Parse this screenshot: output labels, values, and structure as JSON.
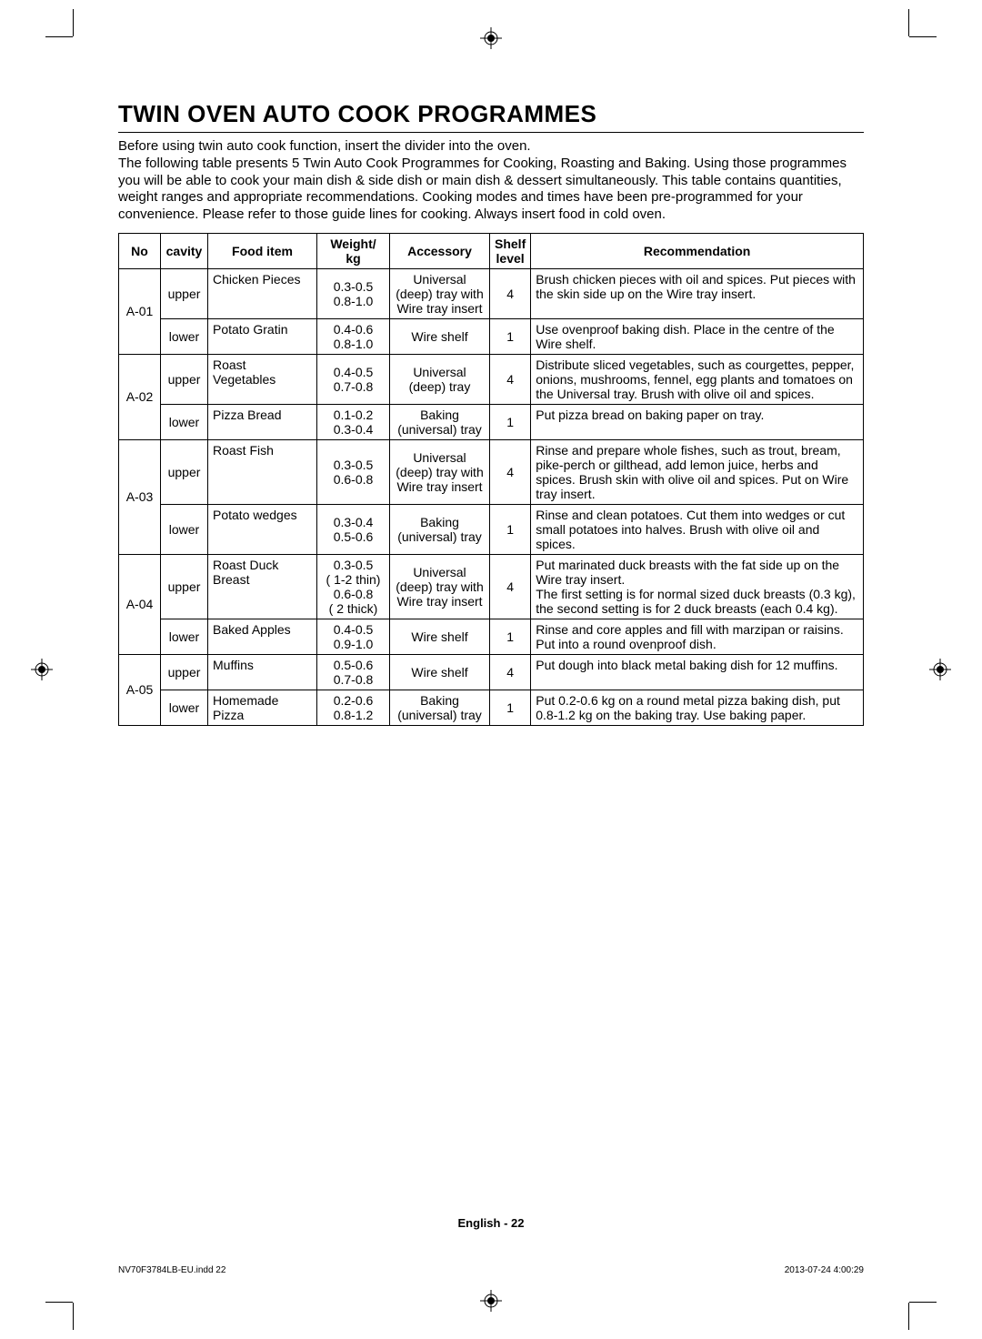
{
  "title": "TWIN OVEN AUTO COOK PROGRAMMES",
  "intro": "Before using twin auto cook function, insert the divider into the oven.\nThe following table presents 5 Twin Auto Cook Programmes for Cooking, Roasting and Baking. Using those programmes you will be able to cook your main dish & side dish or main dish & dessert simultaneously. This table contains quantities, weight ranges and appropriate recommendations. Cooking modes and times have been pre-programmed for your convenience. Please refer to those guide lines for cooking. Always insert food in cold oven.",
  "headers": {
    "no": "No",
    "cavity": "cavity",
    "food": "Food item",
    "weight": "Weight/ kg",
    "accessory": "Accessory",
    "shelf": "Shelf level",
    "rec": "Recommendation"
  },
  "rows": [
    {
      "no": "A-01",
      "cavity": "upper",
      "food": "Chicken Pieces",
      "weight": "0.3-0.5\n0.8-1.0",
      "accessory": "Universal (deep) tray with Wire tray insert",
      "shelf": "4",
      "rec": "Brush chicken pieces with oil and spices. Put pieces with the skin side up on the Wire tray insert."
    },
    {
      "no": "",
      "cavity": "lower",
      "food": "Potato Gratin",
      "weight": "0.4-0.6\n0.8-1.0",
      "accessory": "Wire shelf",
      "shelf": "1",
      "rec": "Use ovenproof baking dish. Place in the centre of the Wire shelf."
    },
    {
      "no": "A-02",
      "cavity": "upper",
      "food": "Roast Vegetables",
      "weight": "0.4-0.5\n0.7-0.8",
      "accessory": "Universal (deep) tray",
      "shelf": "4",
      "rec": "Distribute sliced vegetables, such as courgettes, pepper, onions, mushrooms, fennel, egg plants and tomatoes on the Universal tray. Brush with olive oil and spices."
    },
    {
      "no": "",
      "cavity": "lower",
      "food": "Pizza Bread",
      "weight": "0.1-0.2\n0.3-0.4",
      "accessory": "Baking (universal) tray",
      "shelf": "1",
      "rec": "Put pizza bread on baking paper on tray."
    },
    {
      "no": "A-03",
      "cavity": "upper",
      "food": "Roast Fish",
      "weight": "0.3-0.5\n0.6-0.8",
      "accessory": "Universal (deep) tray with Wire tray insert",
      "shelf": "4",
      "rec": "Rinse and prepare whole ﬁshes, such as trout, bream, pike-perch or gilthead, add lemon juice, herbs and spices. Brush skin with olive oil and spices. Put on Wire tray insert."
    },
    {
      "no": "",
      "cavity": "lower",
      "food": "Potato wedges",
      "weight": "0.3-0.4\n0.5-0.6",
      "accessory": "Baking (universal) tray",
      "shelf": "1",
      "rec": "Rinse and clean potatoes. Cut them into wedges or cut small potatoes into halves. Brush with olive oil and spices."
    },
    {
      "no": "A-04",
      "cavity": "upper",
      "food": "Roast Duck Breast",
      "weight": "0.3-0.5\n( 1-2 thin)\n0.6-0.8\n( 2 thick)",
      "accessory": "Universal (deep) tray with Wire tray insert",
      "shelf": "4",
      "rec": "Put marinated duck breasts with the fat side up on the Wire tray insert.\nThe ﬁrst setting is for normal sized duck breasts (0.3 kg), the second setting is for 2 duck breasts (each 0.4 kg)."
    },
    {
      "no": "",
      "cavity": "lower",
      "food": "Baked Apples",
      "weight": "0.4-0.5\n0.9-1.0",
      "accessory": "Wire shelf",
      "shelf": "1",
      "rec": "Rinse and core apples and ﬁll with marzipan or raisins. Put into a round ovenproof dish."
    },
    {
      "no": "A-05",
      "cavity": "upper",
      "food": "Muffins",
      "weight": "0.5-0.6\n0.7-0.8",
      "accessory": "Wire shelf",
      "shelf": "4",
      "rec": "Put dough into black metal baking dish for 12 mufﬁns."
    },
    {
      "no": "",
      "cavity": "lower",
      "food": "Homemade Pizza",
      "weight": "0.2-0.6\n0.8-1.2",
      "accessory": "Baking (universal) tray",
      "shelf": "1",
      "rec": "Put 0.2-0.6 kg on a round metal pizza baking dish, put 0.8-1.2 kg on the baking tray. Use baking paper."
    }
  ],
  "footer": "English - 22",
  "footline_left": "NV70F3784LB-EU.indd   22",
  "footline_right": "2013-07-24   4:00:29"
}
